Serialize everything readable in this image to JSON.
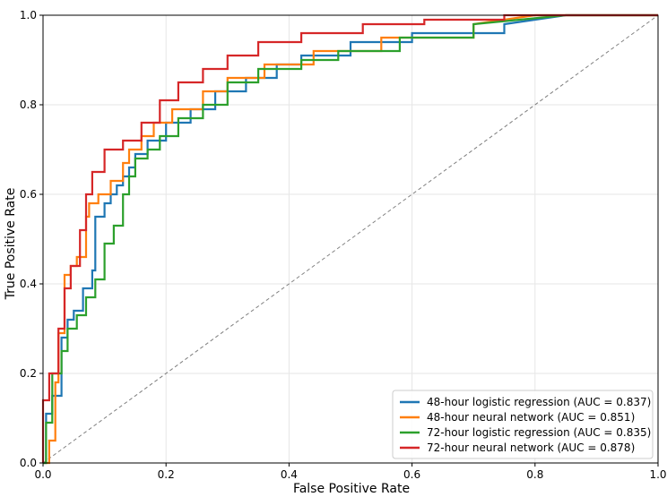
{
  "chart_data": {
    "type": "line",
    "title": "",
    "xlabel": "False Positive Rate",
    "ylabel": "True Positive Rate",
    "xlim": [
      0,
      1
    ],
    "ylim": [
      0,
      1
    ],
    "grid": true,
    "legend_position": "lower-right",
    "x_ticks": [
      "0.0",
      "0.2",
      "0.4",
      "0.6",
      "0.8",
      "1.0"
    ],
    "y_ticks": [
      "0.0",
      "0.2",
      "0.4",
      "0.6",
      "0.8",
      "1.0"
    ],
    "diagonal_reference": {
      "x": [
        0,
        1
      ],
      "y": [
        0,
        1
      ],
      "color": "#808080",
      "style": "dashed"
    },
    "series": [
      {
        "name": "48-hour logistic regression (AUC = 0.837)",
        "color": "#1f77b4",
        "x": [
          0,
          0.005,
          0.005,
          0.015,
          0.015,
          0.03,
          0.03,
          0.04,
          0.04,
          0.05,
          0.05,
          0.065,
          0.065,
          0.08,
          0.08,
          0.085,
          0.085,
          0.1,
          0.1,
          0.11,
          0.11,
          0.12,
          0.12,
          0.13,
          0.13,
          0.14,
          0.14,
          0.15,
          0.15,
          0.17,
          0.17,
          0.2,
          0.2,
          0.24,
          0.24,
          0.28,
          0.28,
          0.33,
          0.33,
          0.38,
          0.38,
          0.42,
          0.42,
          0.5,
          0.5,
          0.6,
          0.6,
          0.75,
          0.75,
          0.85,
          1.0
        ],
        "y": [
          0,
          0,
          0.11,
          0.11,
          0.15,
          0.15,
          0.28,
          0.28,
          0.32,
          0.32,
          0.34,
          0.34,
          0.39,
          0.39,
          0.43,
          0.43,
          0.55,
          0.55,
          0.58,
          0.58,
          0.6,
          0.6,
          0.62,
          0.62,
          0.64,
          0.64,
          0.66,
          0.66,
          0.69,
          0.69,
          0.72,
          0.72,
          0.76,
          0.76,
          0.79,
          0.79,
          0.83,
          0.83,
          0.86,
          0.86,
          0.89,
          0.89,
          0.91,
          0.91,
          0.94,
          0.94,
          0.96,
          0.96,
          0.98,
          1.0,
          1.0
        ]
      },
      {
        "name": "48-hour neural network (AUC = 0.851)",
        "color": "#ff7f0e",
        "x": [
          0,
          0.01,
          0.01,
          0.02,
          0.02,
          0.025,
          0.025,
          0.035,
          0.035,
          0.045,
          0.045,
          0.055,
          0.055,
          0.07,
          0.07,
          0.075,
          0.075,
          0.09,
          0.09,
          0.11,
          0.11,
          0.13,
          0.13,
          0.14,
          0.14,
          0.16,
          0.16,
          0.18,
          0.18,
          0.21,
          0.21,
          0.26,
          0.26,
          0.3,
          0.3,
          0.36,
          0.36,
          0.44,
          0.44,
          0.55,
          0.55,
          0.7,
          0.7,
          0.8,
          1.0
        ],
        "y": [
          0,
          0,
          0.05,
          0.05,
          0.18,
          0.18,
          0.29,
          0.29,
          0.42,
          0.42,
          0.44,
          0.44,
          0.46,
          0.46,
          0.55,
          0.55,
          0.58,
          0.58,
          0.6,
          0.6,
          0.63,
          0.63,
          0.67,
          0.67,
          0.7,
          0.7,
          0.73,
          0.73,
          0.76,
          0.76,
          0.79,
          0.79,
          0.83,
          0.83,
          0.86,
          0.86,
          0.89,
          0.89,
          0.92,
          0.92,
          0.95,
          0.95,
          0.98,
          1.0,
          1.0
        ]
      },
      {
        "name": "72-hour logistic regression (AUC = 0.835)",
        "color": "#2ca02c",
        "x": [
          0,
          0.005,
          0.005,
          0.015,
          0.015,
          0.03,
          0.03,
          0.04,
          0.04,
          0.055,
          0.055,
          0.07,
          0.07,
          0.085,
          0.085,
          0.1,
          0.1,
          0.115,
          0.115,
          0.13,
          0.13,
          0.14,
          0.14,
          0.15,
          0.15,
          0.17,
          0.17,
          0.19,
          0.19,
          0.22,
          0.22,
          0.26,
          0.26,
          0.3,
          0.3,
          0.35,
          0.35,
          0.42,
          0.42,
          0.48,
          0.48,
          0.58,
          0.58,
          0.7,
          0.7,
          0.85,
          1.0
        ],
        "y": [
          0,
          0,
          0.09,
          0.09,
          0.2,
          0.2,
          0.25,
          0.25,
          0.3,
          0.3,
          0.33,
          0.33,
          0.37,
          0.37,
          0.41,
          0.41,
          0.49,
          0.49,
          0.53,
          0.53,
          0.6,
          0.6,
          0.64,
          0.64,
          0.68,
          0.68,
          0.7,
          0.7,
          0.73,
          0.73,
          0.77,
          0.77,
          0.8,
          0.8,
          0.85,
          0.85,
          0.88,
          0.88,
          0.9,
          0.9,
          0.92,
          0.92,
          0.95,
          0.95,
          0.98,
          1.0,
          1.0
        ]
      },
      {
        "name": "72-hour neural network (AUC = 0.878)",
        "color": "#d62728",
        "x": [
          0,
          0.0,
          0.01,
          0.01,
          0.025,
          0.025,
          0.035,
          0.035,
          0.045,
          0.045,
          0.06,
          0.06,
          0.07,
          0.07,
          0.08,
          0.08,
          0.1,
          0.1,
          0.13,
          0.13,
          0.16,
          0.16,
          0.19,
          0.19,
          0.22,
          0.22,
          0.26,
          0.26,
          0.3,
          0.3,
          0.35,
          0.35,
          0.42,
          0.42,
          0.52,
          0.52,
          0.62,
          0.62,
          0.75,
          0.75,
          1.0
        ],
        "y": [
          0,
          0.14,
          0.14,
          0.2,
          0.2,
          0.3,
          0.3,
          0.39,
          0.39,
          0.44,
          0.44,
          0.52,
          0.52,
          0.6,
          0.6,
          0.65,
          0.65,
          0.7,
          0.7,
          0.72,
          0.72,
          0.76,
          0.76,
          0.81,
          0.81,
          0.85,
          0.85,
          0.88,
          0.88,
          0.91,
          0.91,
          0.94,
          0.94,
          0.96,
          0.96,
          0.98,
          0.98,
          0.99,
          0.99,
          1.0,
          1.0
        ]
      }
    ]
  }
}
